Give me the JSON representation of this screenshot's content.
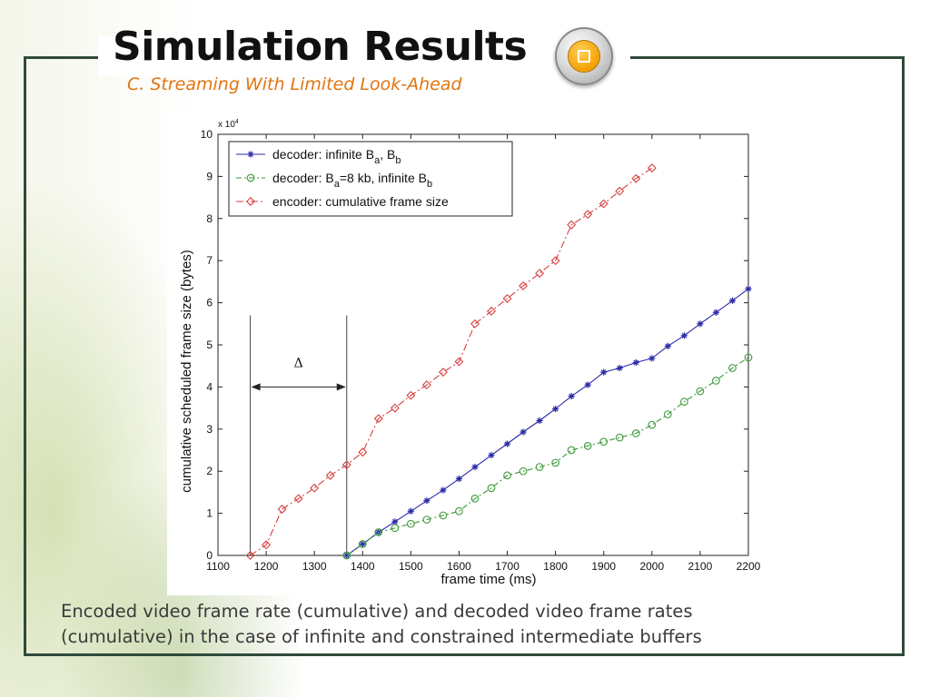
{
  "slide": {
    "title": "Simulation Results",
    "subtitle": "C. Streaming With Limited Look-Ahead",
    "caption_line1": "Encoded video frame rate (cumulative) and decoded video frame rates",
    "caption_line2": "(cumulative) in the case of infinite and constrained intermediate buffers",
    "badge_icon": "square-icon",
    "colors": {
      "title": "#111111",
      "subtitle": "#e2740f",
      "frame_border": "#2f4a3a",
      "badge": "#f4a000"
    }
  },
  "chart_data": {
    "type": "line",
    "title": "",
    "xlabel": "frame time (ms)",
    "ylabel": "cumulative scheduled frame size (bytes)",
    "y_multiplier_label": "x 10",
    "y_multiplier_exponent": "4",
    "xlim": [
      1100,
      2200
    ],
    "ylim": [
      0,
      10
    ],
    "xticks": [
      "1100",
      "1200",
      "1300",
      "1400",
      "1500",
      "1600",
      "1700",
      "1800",
      "1900",
      "2000",
      "2100",
      "2200"
    ],
    "yticks": [
      "0",
      "1",
      "2",
      "3",
      "4",
      "5",
      "6",
      "7",
      "8",
      "9",
      "10"
    ],
    "grid": false,
    "legend_position": "top-left",
    "series": [
      {
        "name": "decoder: infinite B_a, B_b",
        "legend_parts": [
          "decoder: infinite B",
          "a",
          ", B",
          "b",
          ""
        ],
        "color": "#2a2aa8",
        "marker": "star",
        "dash": "",
        "x": [
          1367,
          1400,
          1433,
          1467,
          1500,
          1533,
          1567,
          1600,
          1633,
          1667,
          1700,
          1733,
          1767,
          1800,
          1833,
          1867,
          1900,
          1933,
          1967,
          2000,
          2033,
          2067,
          2100,
          2133,
          2167,
          2200
        ],
        "y": [
          0,
          0.27,
          0.55,
          0.8,
          1.05,
          1.3,
          1.55,
          1.82,
          2.1,
          2.38,
          2.65,
          2.93,
          3.2,
          3.48,
          3.78,
          4.05,
          4.35,
          4.45,
          4.58,
          4.68,
          4.97,
          5.22,
          5.5,
          5.77,
          6.05,
          6.33
        ]
      },
      {
        "name": "decoder: B_a=8 kb, infinite B_b",
        "legend_parts": [
          "decoder: B",
          "a",
          "=8 kb, infinite B",
          "b",
          ""
        ],
        "color": "#3a9a3a",
        "marker": "circle",
        "dash": "6,3,2,3",
        "x": [
          1367,
          1400,
          1433,
          1467,
          1500,
          1533,
          1567,
          1600,
          1633,
          1667,
          1700,
          1733,
          1767,
          1800,
          1833,
          1867,
          1900,
          1933,
          1967,
          2000,
          2033,
          2067,
          2100,
          2133,
          2167,
          2200
        ],
        "y": [
          0,
          0.27,
          0.55,
          0.65,
          0.75,
          0.85,
          0.95,
          1.05,
          1.35,
          1.6,
          1.9,
          2.0,
          2.1,
          2.2,
          2.5,
          2.6,
          2.7,
          2.8,
          2.9,
          3.1,
          3.35,
          3.65,
          3.9,
          4.15,
          4.45,
          4.7
        ]
      },
      {
        "name": "encoder: cumulative frame size",
        "legend_parts": [
          "encoder: cumulative frame size",
          "",
          "",
          "",
          ""
        ],
        "color": "#d64040",
        "marker": "diamond",
        "dash": "8,3,2,3",
        "x": [
          1167,
          1200,
          1233,
          1267,
          1300,
          1333,
          1367,
          1400,
          1433,
          1467,
          1500,
          1533,
          1567,
          1600,
          1633,
          1667,
          1700,
          1733,
          1767,
          1800,
          1833,
          1867,
          1900,
          1933,
          1967,
          2000
        ],
        "y": [
          0,
          0.25,
          1.1,
          1.35,
          1.6,
          1.9,
          2.15,
          2.45,
          3.25,
          3.5,
          3.8,
          4.05,
          4.35,
          4.6,
          5.5,
          5.8,
          6.1,
          6.4,
          6.7,
          7.0,
          7.85,
          8.1,
          8.35,
          8.65,
          8.95,
          9.2
        ]
      }
    ],
    "annotation": {
      "label": "Δ",
      "x_start": 1167,
      "x_end": 1367,
      "y_level": 4.0,
      "y_bottom": 0,
      "y_top": 5.7
    }
  }
}
